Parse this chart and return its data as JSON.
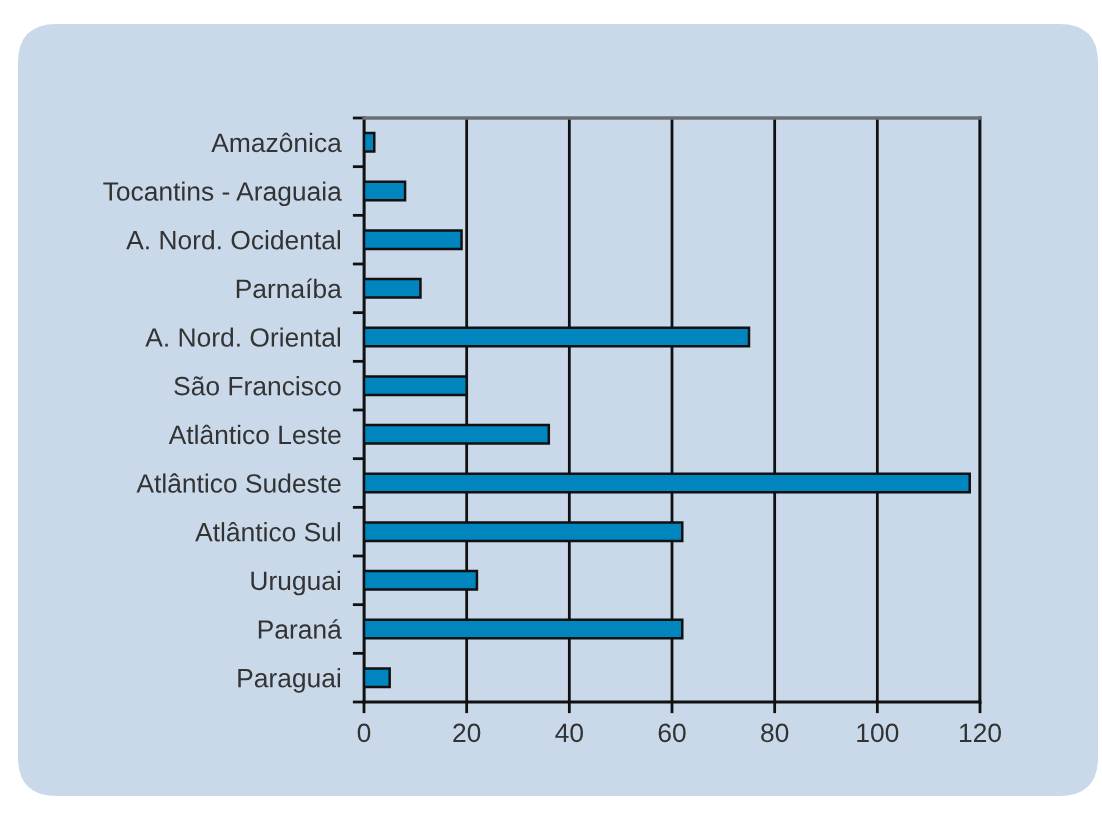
{
  "chart_data": {
    "type": "bar",
    "orientation": "horizontal",
    "categories": [
      "Amazônica",
      "Tocantins - Araguaia",
      "A. Nord. Ocidental",
      "Parnaíba",
      "A. Nord. Oriental",
      "São Francisco",
      "Atlântico Leste",
      "Atlântico Sudeste",
      "Atlântico Sul",
      "Uruguai",
      "Paraná",
      "Paraguai"
    ],
    "values": [
      2,
      8,
      19,
      11,
      75,
      20,
      36,
      118,
      62,
      22,
      62,
      5
    ],
    "color": "#0085be",
    "xlim": [
      0,
      120
    ],
    "xticks": [
      0,
      20,
      40,
      60,
      80,
      100,
      120
    ],
    "grid": "x",
    "legend": false
  }
}
